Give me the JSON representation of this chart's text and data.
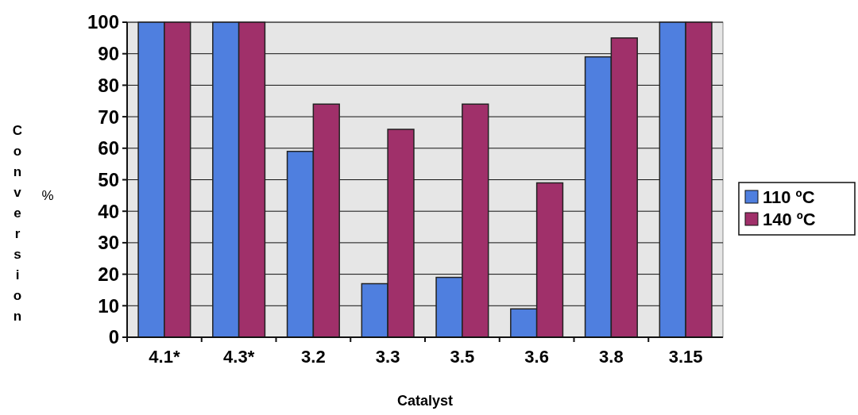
{
  "chart_data": {
    "type": "bar",
    "xlabel": "Catalyst",
    "ylabel": "Conversion",
    "annotations": [
      "%"
    ],
    "categories": [
      "4.1*",
      "4.3*",
      "3.2",
      "3.3",
      "3.5",
      "3.6",
      "3.8",
      "3.15"
    ],
    "series": [
      {
        "name": "110 ºC",
        "color": "#4f7fdf",
        "values": [
          100,
          100,
          59,
          17,
          19,
          9,
          89,
          100
        ]
      },
      {
        "name": "140 ºC",
        "color": "#a0306a",
        "values": [
          100,
          100,
          74,
          66,
          74,
          49,
          95,
          100
        ]
      }
    ],
    "ylim": [
      0,
      100
    ],
    "yticks": [
      0,
      10,
      20,
      30,
      40,
      50,
      60,
      70,
      80,
      90,
      100
    ],
    "grid": "y",
    "legend": "right"
  }
}
